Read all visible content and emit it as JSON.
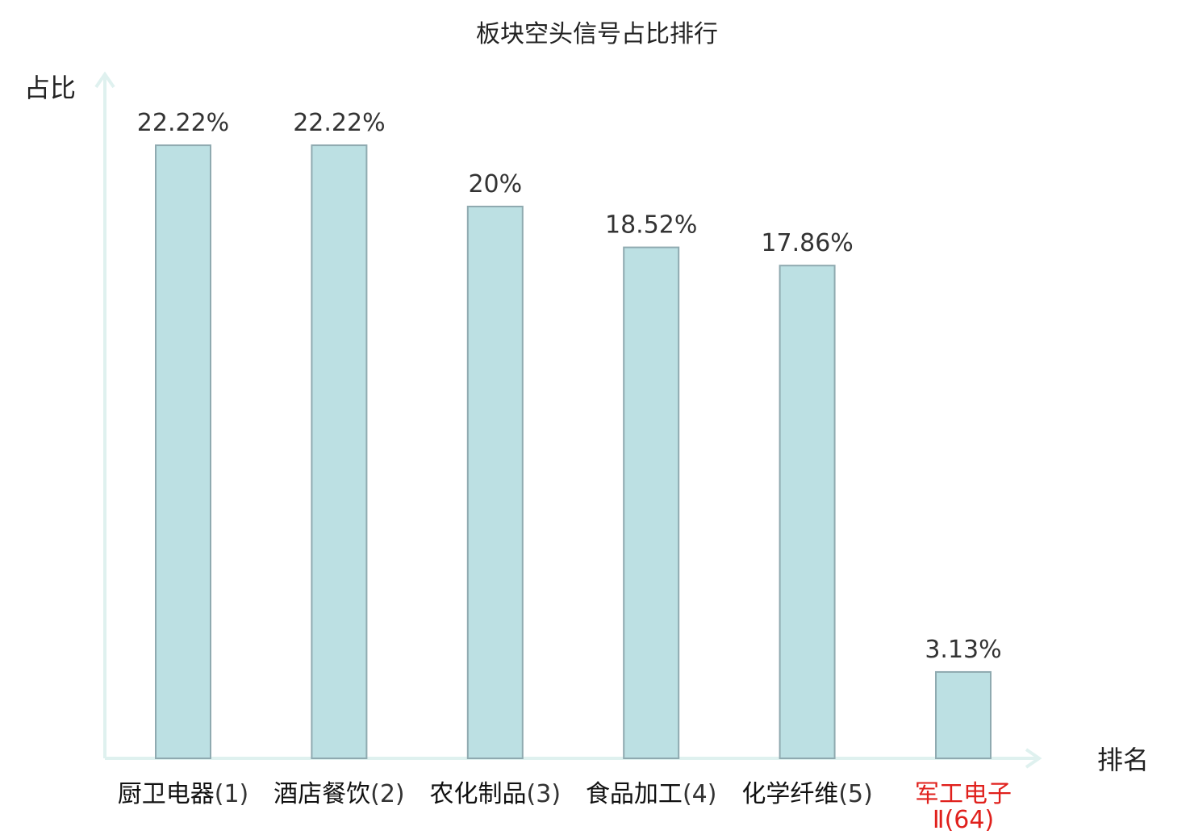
{
  "chart_data": {
    "type": "bar",
    "title": "板块空头信号占比排行",
    "ylabel": "占比",
    "xlabel": "排名",
    "categories": [
      "厨卫电器",
      "酒店餐饮",
      "农化制品",
      "食品加工",
      "化学纤维",
      "军工电子Ⅱ"
    ],
    "ranks": [
      "(1)",
      "(2)",
      "(3)",
      "(4)",
      "(5)",
      "(64)"
    ],
    "values": [
      22.22,
      22.22,
      20,
      18.52,
      17.86,
      3.13
    ],
    "value_labels": [
      "22.22%",
      "22.22%",
      "20%",
      "18.52%",
      "17.86%",
      "3.13%"
    ],
    "highlight_index": 5,
    "ylim": [
      0,
      25
    ],
    "grid": false
  },
  "colors": {
    "bar_fill": "#bce0e3",
    "bar_stroke": "#8faab0",
    "axis": "#dff1ef",
    "highlight_text": "#e0201c",
    "text": "#222222"
  }
}
